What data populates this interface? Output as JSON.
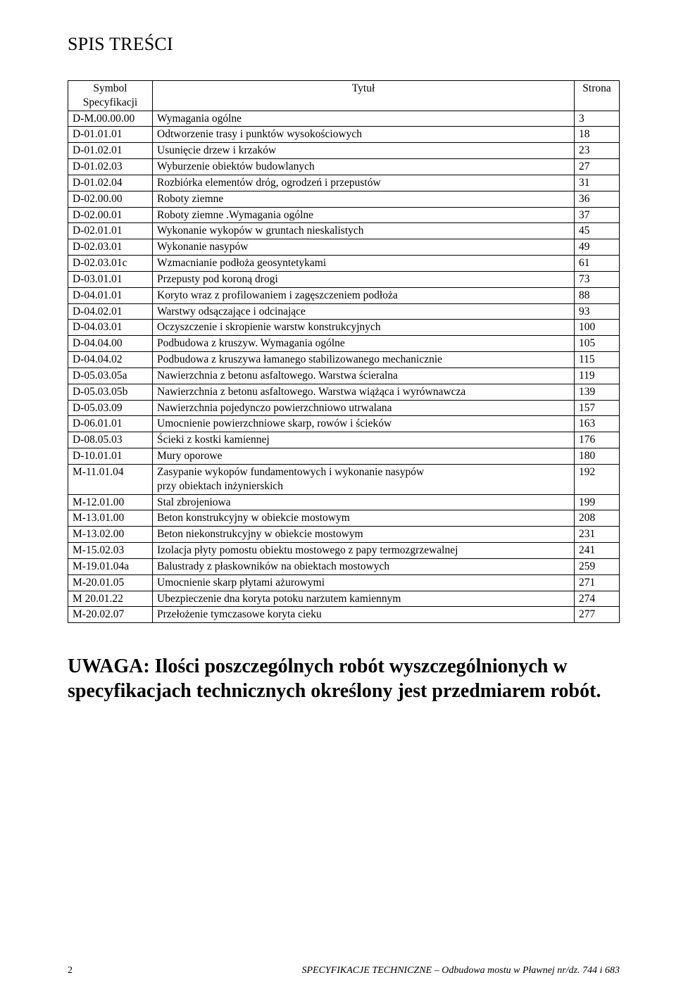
{
  "toc_title": "SPIS TREŚCI",
  "header": {
    "symbol_line1": "Symbol",
    "symbol_line2": "Specyfikacji",
    "title": "Tytuł",
    "page": "Strona"
  },
  "rows": [
    {
      "symbol": "D-M.00.00.00",
      "title": "Wymagania ogólne",
      "page": "3"
    },
    {
      "symbol": "D-01.01.01",
      "title": "Odtworzenie  trasy i punktów  wysokościowych",
      "page": "18"
    },
    {
      "symbol": "D-01.02.01",
      "title": "Usunięcie drzew i krzaków",
      "page": "23"
    },
    {
      "symbol": "D-01.02.03",
      "title": "Wyburzenie obiektów budowlanych",
      "page": "27"
    },
    {
      "symbol": "D-01.02.04",
      "title": "Rozbiórka elementów dróg, ogrodzeń i przepustów",
      "page": "31"
    },
    {
      "symbol": "D-02.00.00",
      "title": "Roboty ziemne",
      "page": "36"
    },
    {
      "symbol": "D-02.00.01",
      "title": "Roboty ziemne .Wymagania ogólne",
      "page": "37"
    },
    {
      "symbol": "D-02.01.01",
      "title": "Wykonanie wykopów w gruntach nieskalistych",
      "page": "45"
    },
    {
      "symbol": "D-02.03.01",
      "title": "Wykonanie nasypów",
      "page": "49"
    },
    {
      "symbol": "D-02.03.01c",
      "title": "Wzmacnianie podłoża geosyntetykami",
      "page": "61"
    },
    {
      "symbol": "D-03.01.01",
      "title": "Przepusty  pod  koroną  drogi",
      "page": "73"
    },
    {
      "symbol": "D-04.01.01",
      "title": "Koryto wraz z profilowaniem i zagęszczeniem podłoża",
      "page": "88"
    },
    {
      "symbol": "D-04.02.01",
      "title": "Warstwy odsączające  i  odcinające",
      "page": "93"
    },
    {
      "symbol": "D-04.03.01",
      "title": "Oczyszczenie  i  skropienie  warstw  konstrukcyjnych",
      "page": "100"
    },
    {
      "symbol": "D-04.04.00",
      "title": "Podbudowa  z  kruszyw.  Wymagania ogólne",
      "page": "105"
    },
    {
      "symbol": "D-04.04.02",
      "title": "Podbudowa  z  kruszywa  łamanego stabilizowanego  mechanicznie",
      "page": "115"
    },
    {
      "symbol": "D-05.03.05a",
      "title": "Nawierzchnia  z  betonu asfaltowego.  Warstwa ścieralna",
      "page": "119"
    },
    {
      "symbol": "D-05.03.05b",
      "title": "Nawierzchnia  z  betonu asfaltowego. Warstwa wiążąca i wyrównawcza",
      "page": "139"
    },
    {
      "symbol": "D-05.03.09",
      "title": "Nawierzchnia pojedynczo powierzchniowo utrwalana",
      "page": "157"
    },
    {
      "symbol": "D-06.01.01",
      "title": "Umocnienie  powierzchniowe  skarp,  rowów  i  ścieków",
      "page": "163"
    },
    {
      "symbol": "D-08.05.03",
      "title": "Ścieki   z  kostki  kamiennej",
      "page": "176"
    },
    {
      "symbol": "D-10.01.01",
      "title": "Mury   oporowe",
      "page": "180"
    },
    {
      "symbol": "M-11.01.04",
      "title": "Zasypanie  wykopów  fundamentowych i  wykonanie  nasypów\nprzy  obiektach  inżynierskich",
      "page": "192"
    },
    {
      "symbol": "M-12.01.00",
      "title": "Stal  zbrojeniowa",
      "page": "199"
    },
    {
      "symbol": "M-13.01.00",
      "title": "Beton  konstrukcyjny w  obiekcie  mostowym",
      "page": "208"
    },
    {
      "symbol": "M-13.02.00",
      "title": "Beton  niekonstrukcyjny w  obiekcie  mostowym",
      "page": "231"
    },
    {
      "symbol": "M-15.02.03",
      "title": "Izolacja  płyty  pomostu  obiektu  mostowego  z  papy  termozgrzewalnej",
      "page": "241"
    },
    {
      "symbol": "M-19.01.04a",
      "title": "Balustrady  z  płaskowników na  obiektach mostowych",
      "page": "259"
    },
    {
      "symbol": "M-20.01.05",
      "title": "Umocnienie skarp płytami ażurowymi",
      "page": "271"
    },
    {
      "symbol": "M 20.01.22",
      "title": "Ubezpieczenie dna koryta potoku narzutem kamiennym",
      "page": "274"
    },
    {
      "symbol": "M-20.02.07",
      "title": "Przełożenie tymczasowe koryta cieku",
      "page": "277"
    }
  ],
  "note_line1": "UWAGA: Ilości poszczególnych robót wyszczególnionych w",
  "note_line2": "specyfikacjach technicznych określony jest przedmiarem robót.",
  "footer_pagenum": "2",
  "footer_text": "SPECYFIKACJE TECHNICZNE – Odbudowa mostu w Pławnej nr/dz. 744 i 683"
}
